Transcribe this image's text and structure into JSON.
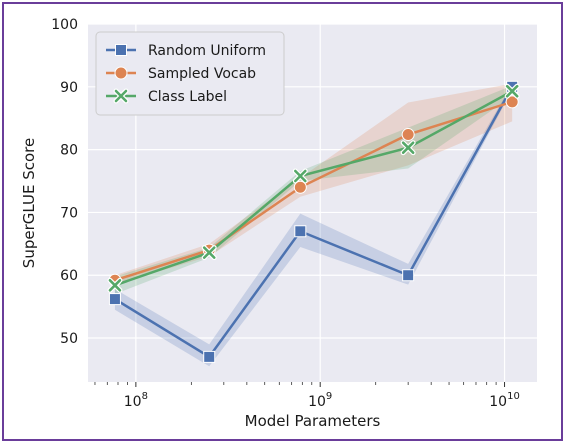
{
  "frame_color": "#6a3d9a",
  "chart_data": {
    "type": "line",
    "xscale": "log",
    "xlabel": "Model Parameters",
    "ylabel": "SuperGLUE Score",
    "xlim": [
      55000000,
      15000000000
    ],
    "ylim": [
      43,
      100
    ],
    "grid": true,
    "legend_position": "top-left",
    "yticks": [
      50,
      60,
      70,
      80,
      90,
      100
    ],
    "xticks": [
      {
        "value": 100000000,
        "base": "10",
        "exp": "8"
      },
      {
        "value": 1000000000,
        "base": "10",
        "exp": "9"
      },
      {
        "value": 10000000000,
        "base": "10",
        "exp": "10"
      }
    ],
    "x": [
      77000000,
      250000000,
      780000000,
      3000000000,
      11000000000
    ],
    "series": [
      {
        "name": "Random Uniform",
        "color": "#4c72b0",
        "marker": "square",
        "values": [
          56.2,
          47.0,
          67.0,
          60.0,
          90.0
        ],
        "lower": [
          54.5,
          45.5,
          64.5,
          58.5,
          89.5
        ],
        "upper": [
          57.8,
          49.0,
          69.8,
          61.8,
          90.5
        ]
      },
      {
        "name": "Sampled Vocab",
        "color": "#dd8452",
        "marker": "circle",
        "values": [
          59.2,
          64.0,
          74.0,
          82.4,
          87.6
        ],
        "lower": [
          58.5,
          63.0,
          72.5,
          77.5,
          84.5
        ],
        "upper": [
          60.0,
          65.0,
          75.5,
          87.5,
          90.5
        ]
      },
      {
        "name": "Class Label",
        "color": "#55a868",
        "marker": "x",
        "values": [
          58.4,
          63.6,
          75.8,
          80.3,
          89.3
        ],
        "lower": [
          57.0,
          62.8,
          75.0,
          77.0,
          88.5
        ],
        "upper": [
          59.8,
          64.4,
          76.6,
          83.5,
          90.2
        ]
      }
    ]
  }
}
